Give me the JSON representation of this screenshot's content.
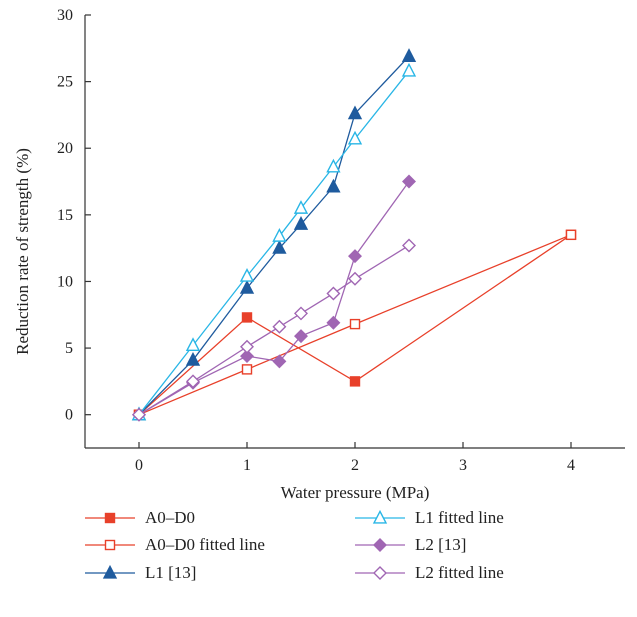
{
  "chart_data": {
    "type": "line",
    "xlabel": "Water pressure (MPa)",
    "ylabel": "Reduction rate of strength (%)",
    "xlim": [
      -0.5,
      4.5
    ],
    "ylim": [
      -2.5,
      30
    ],
    "xticks": [
      0,
      1,
      2,
      3,
      4
    ],
    "yticks": [
      0,
      5,
      10,
      15,
      20,
      25,
      30
    ],
    "grid": false,
    "legend_position": "bottom",
    "series": [
      {
        "name": "A0–D0",
        "color": "#e8402a",
        "marker": "square-filled",
        "x": [
          0,
          1,
          2,
          4
        ],
        "y": [
          0,
          7.3,
          2.5,
          13.5
        ]
      },
      {
        "name": "A0–D0 fitted line",
        "color": "#e8402a",
        "marker": "square-open",
        "x": [
          0,
          1,
          2,
          4
        ],
        "y": [
          0,
          3.4,
          6.8,
          13.5
        ]
      },
      {
        "name": "L1 [13]",
        "color": "#1f5b9e",
        "marker": "triangle-filled",
        "x": [
          0,
          0.5,
          1,
          1.3,
          1.5,
          1.8,
          2,
          2.5
        ],
        "y": [
          0,
          4.1,
          9.5,
          12.5,
          14.3,
          17.1,
          22.6,
          26.9
        ]
      },
      {
        "name": "L1 fitted line",
        "color": "#29b6e6",
        "marker": "triangle-open",
        "x": [
          0,
          0.5,
          1,
          1.3,
          1.5,
          1.8,
          2,
          2.5
        ],
        "y": [
          0,
          5.2,
          10.4,
          13.4,
          15.5,
          18.6,
          20.7,
          25.8
        ]
      },
      {
        "name": "L2 [13]",
        "color": "#a066b3",
        "marker": "diamond-filled",
        "x": [
          0,
          0.5,
          1,
          1.3,
          1.5,
          1.8,
          2,
          2.5
        ],
        "y": [
          0,
          2.4,
          4.4,
          4.0,
          5.9,
          6.9,
          11.9,
          17.5
        ]
      },
      {
        "name": "L2 fitted line",
        "color": "#a066b3",
        "marker": "diamond-open",
        "x": [
          0,
          0.5,
          1,
          1.3,
          1.5,
          1.8,
          2,
          2.5
        ],
        "y": [
          0,
          2.5,
          5.1,
          6.6,
          7.6,
          9.1,
          10.2,
          12.7
        ]
      }
    ]
  }
}
